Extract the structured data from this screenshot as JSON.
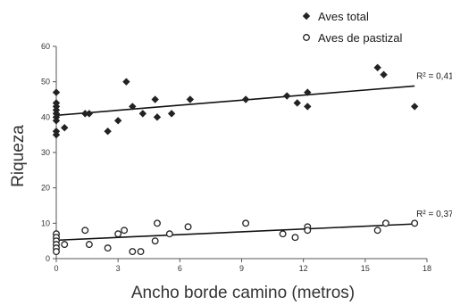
{
  "chart_data": {
    "type": "scatter",
    "title": "",
    "xlabel": "Ancho borde camino (metros)",
    "ylabel": "Riqueza",
    "xlim": [
      0,
      18
    ],
    "ylim": [
      0,
      60
    ],
    "xticks": [
      0,
      3,
      6,
      9,
      12,
      15,
      18
    ],
    "yticks": [
      0,
      10,
      20,
      30,
      40,
      50,
      60
    ],
    "grid": false,
    "legend": "top-right",
    "series": [
      {
        "name": "Aves total",
        "marker": "diamond-filled",
        "color": "#222222",
        "points": [
          [
            0,
            47
          ],
          [
            0,
            44
          ],
          [
            0,
            43
          ],
          [
            0,
            42
          ],
          [
            0,
            41
          ],
          [
            0,
            40
          ],
          [
            0,
            39
          ],
          [
            0,
            36
          ],
          [
            0,
            35
          ],
          [
            0.4,
            37
          ],
          [
            1.4,
            41
          ],
          [
            1.6,
            41
          ],
          [
            2.5,
            36
          ],
          [
            3.0,
            39
          ],
          [
            3.4,
            50
          ],
          [
            3.7,
            43
          ],
          [
            4.2,
            41
          ],
          [
            4.8,
            45
          ],
          [
            4.9,
            40
          ],
          [
            5.6,
            41
          ],
          [
            6.5,
            45
          ],
          [
            9.2,
            45
          ],
          [
            11.2,
            46
          ],
          [
            11.7,
            44
          ],
          [
            12.2,
            47
          ],
          [
            12.2,
            43
          ],
          [
            15.6,
            54
          ],
          [
            15.9,
            52
          ],
          [
            17.4,
            43
          ]
        ],
        "trend": {
          "x": [
            0,
            17.4
          ],
          "y": [
            40.5,
            48.8
          ],
          "label": "R² = 0,41"
        }
      },
      {
        "name": "Aves de pastizal",
        "marker": "circle-open",
        "color": "#222222",
        "points": [
          [
            0,
            7
          ],
          [
            0,
            6
          ],
          [
            0,
            5
          ],
          [
            0,
            4
          ],
          [
            0,
            3
          ],
          [
            0,
            2
          ],
          [
            0.4,
            4
          ],
          [
            1.4,
            8
          ],
          [
            1.6,
            4
          ],
          [
            2.5,
            3
          ],
          [
            3.0,
            7
          ],
          [
            3.3,
            8
          ],
          [
            3.7,
            2
          ],
          [
            4.1,
            2
          ],
          [
            4.8,
            5
          ],
          [
            4.9,
            10
          ],
          [
            5.5,
            7
          ],
          [
            6.4,
            9
          ],
          [
            9.2,
            10
          ],
          [
            11.0,
            7
          ],
          [
            11.6,
            6
          ],
          [
            12.2,
            9
          ],
          [
            12.2,
            8
          ],
          [
            15.6,
            8
          ],
          [
            16.0,
            10
          ],
          [
            17.4,
            10
          ]
        ],
        "trend": {
          "x": [
            0,
            17.4
          ],
          "y": [
            5.2,
            9.8
          ],
          "label": "R² = 0,37"
        }
      }
    ]
  }
}
